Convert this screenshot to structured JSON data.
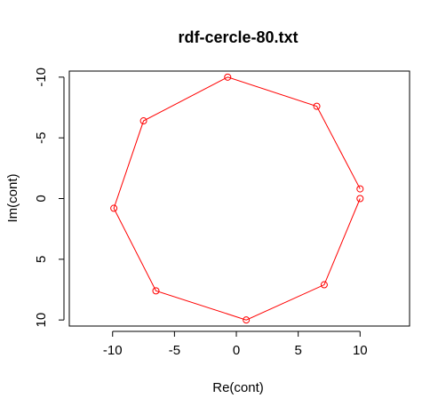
{
  "chart_data": {
    "type": "scatter",
    "title": "rdf-cercle-80.txt",
    "xlabel": "Re(cont)",
    "ylabel": "Im(cont)",
    "xlim": [
      -13.5,
      14.0
    ],
    "ylim": [
      10.5,
      -10.5
    ],
    "x_ticks": [
      -10,
      -5,
      0,
      5,
      10
    ],
    "x_tick_labels": [
      "-10",
      "-5",
      "0",
      "5",
      "10"
    ],
    "y_ticks": [
      -10,
      -5,
      0,
      5,
      10
    ],
    "y_tick_labels": [
      "-10",
      "-5",
      "0",
      "5",
      "10"
    ],
    "y_axis_reversed": true,
    "grid": false,
    "series": [
      {
        "color": "#ff0000",
        "style": "line+points",
        "x": [
          10.0,
          7.1,
          0.8,
          -6.5,
          -9.9,
          -7.5,
          -0.7,
          6.5,
          10.0
        ],
        "y": [
          0.0,
          7.1,
          10.0,
          7.6,
          0.8,
          -6.4,
          -10.0,
          -7.6,
          -0.8
        ]
      }
    ]
  }
}
